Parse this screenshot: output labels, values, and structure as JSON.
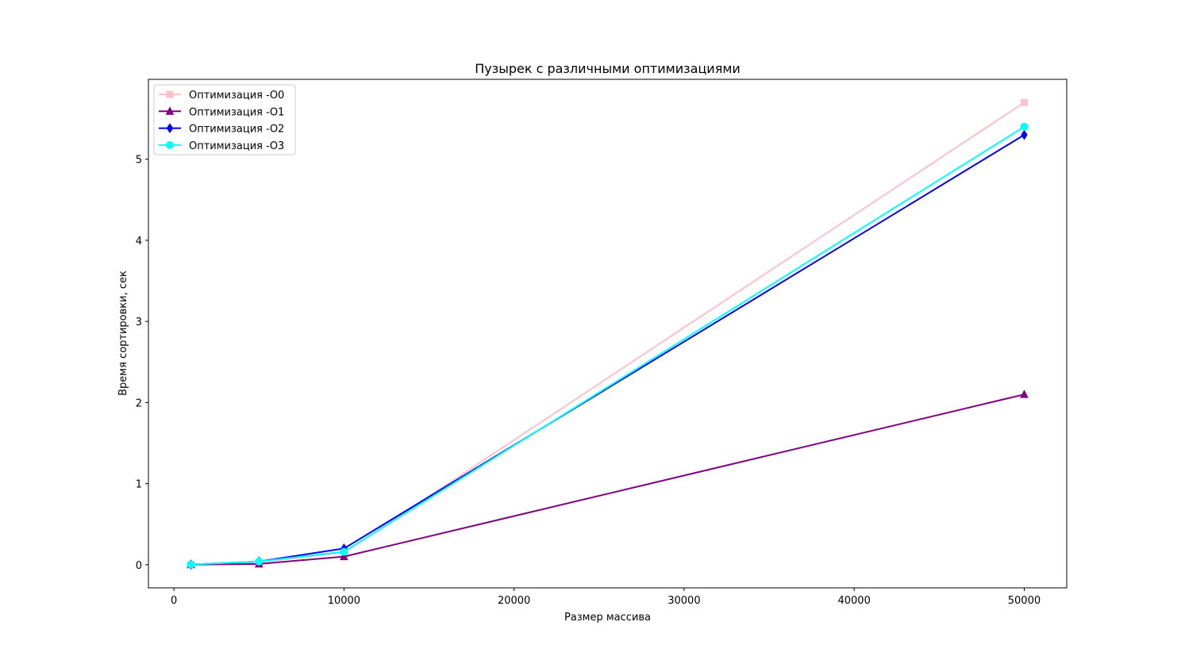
{
  "chart_data": {
    "type": "line",
    "title": "Пузырек с различными оптимизациями",
    "xlabel": "Размер массива",
    "ylabel": "Время сортировки, сек",
    "x": [
      1000,
      5000,
      10000,
      50000
    ],
    "xlim": [
      -1500,
      52500
    ],
    "ylim": [
      -0.285,
      5.985
    ],
    "xticks": [
      0,
      10000,
      20000,
      30000,
      40000,
      50000
    ],
    "xtick_labels": [
      "0",
      "10000",
      "20000",
      "30000",
      "40000",
      "50000"
    ],
    "yticks": [
      0,
      1,
      2,
      3,
      4,
      5
    ],
    "ytick_labels": [
      "0",
      "1",
      "2",
      "3",
      "4",
      "5"
    ],
    "grid": false,
    "legend_position": "top-left",
    "series": [
      {
        "name": "Оптимизация -O0",
        "color": "#ffc0cb",
        "marker": "square",
        "values": [
          0.002,
          0.03,
          0.15,
          5.7
        ]
      },
      {
        "name": "Оптимизация -O1",
        "color": "#800080",
        "marker": "triangle",
        "values": [
          0.001,
          0.01,
          0.1,
          2.1
        ]
      },
      {
        "name": "Оптимизация -O2",
        "color": "#0000ff",
        "marker": "diamond",
        "values": [
          0.002,
          0.04,
          0.2,
          5.3
        ]
      },
      {
        "name": "Оптимизация -O3",
        "color": "#00ffff",
        "marker": "circle",
        "values": [
          0.002,
          0.04,
          0.16,
          5.4
        ]
      }
    ]
  }
}
